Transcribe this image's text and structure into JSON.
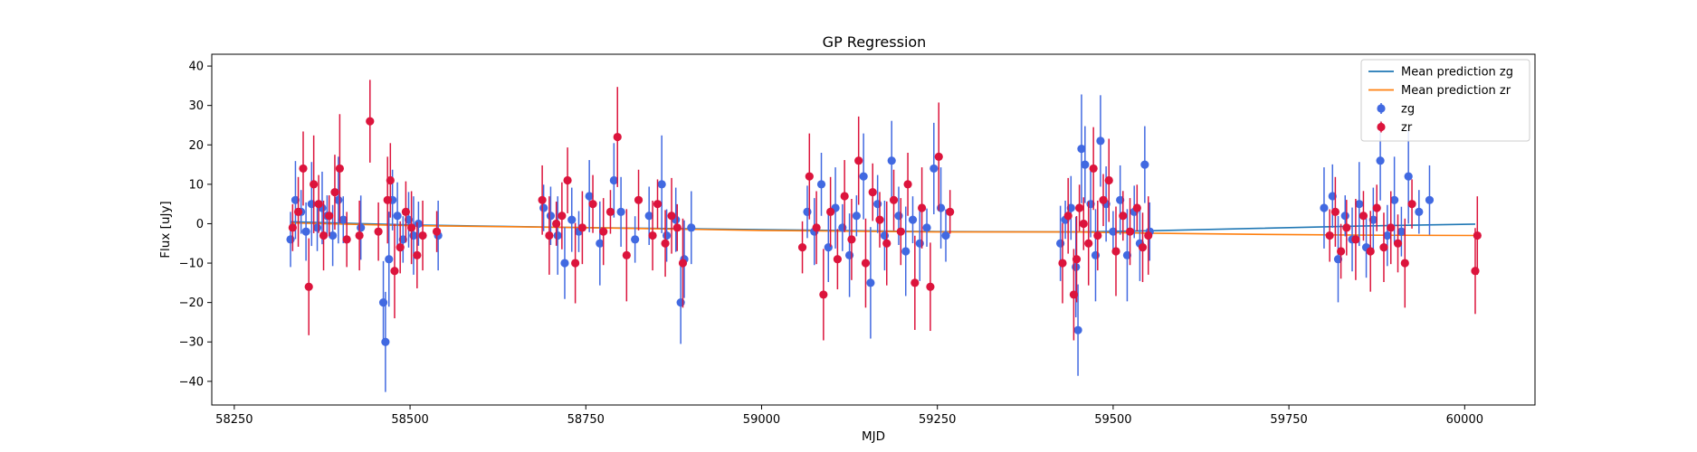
{
  "chart_data": {
    "type": "scatter",
    "title": "GP Regression",
    "xlabel": "MJD",
    "ylabel": "Flux [uJy]",
    "xlim": [
      58218,
      60100
    ],
    "ylim": [
      -46,
      43
    ],
    "xticks": [
      58250,
      58500,
      58750,
      59000,
      59250,
      59500,
      59750,
      60000
    ],
    "yticks": [
      -40,
      -30,
      -20,
      -10,
      0,
      10,
      20,
      30,
      40
    ],
    "legend_position": "top-right",
    "lines": [
      {
        "name": "Mean prediction zg",
        "color": "#1f77b4",
        "x": [
          58330,
          58500,
          58750,
          59000,
          59250,
          59450,
          59550,
          59700,
          59850,
          60015
        ],
        "y": [
          0.5,
          -0.3,
          -1.0,
          -1.5,
          -2.0,
          -2.1,
          -1.8,
          -1.2,
          -0.6,
          -0.1
        ]
      },
      {
        "name": "Mean prediction zr",
        "color": "#ff7f0e",
        "x": [
          58330,
          58500,
          58750,
          59000,
          59250,
          59450,
          59550,
          59700,
          59850,
          60015
        ],
        "y": [
          0.2,
          -0.5,
          -1.0,
          -1.7,
          -2.1,
          -2.1,
          -2.4,
          -2.7,
          -2.9,
          -3.0
        ]
      }
    ],
    "series": [
      {
        "name": "zg",
        "color": "#4169e1",
        "x": [
          58330,
          58337,
          58345,
          58352,
          58360,
          58368,
          58375,
          58382,
          58390,
          58398,
          58405,
          58430,
          58462,
          58465,
          58470,
          58475,
          58482,
          58490,
          58498,
          58505,
          58512,
          58540,
          58690,
          58700,
          58710,
          58720,
          58730,
          58740,
          58755,
          58770,
          58790,
          58800,
          58820,
          58840,
          58858,
          58865,
          58878,
          58885,
          58890,
          58900,
          59065,
          59075,
          59085,
          59095,
          59105,
          59115,
          59125,
          59135,
          59145,
          59155,
          59165,
          59175,
          59185,
          59195,
          59205,
          59215,
          59225,
          59235,
          59245,
          59255,
          59262,
          59425,
          59432,
          59440,
          59447,
          59450,
          59455,
          59460,
          59468,
          59475,
          59482,
          59490,
          59500,
          59510,
          59520,
          59530,
          59538,
          59545,
          59552,
          59800,
          59812,
          59820,
          59830,
          59840,
          59850,
          59860,
          59870,
          59880,
          59890,
          59900,
          59910,
          59920,
          59935,
          59950
        ],
        "y": [
          -4,
          6,
          3,
          -2,
          5,
          -1,
          4,
          2,
          -3,
          6,
          1,
          -1,
          -20,
          -30,
          -9,
          6,
          2,
          -4,
          1,
          -3,
          0,
          -3,
          4,
          2,
          -3,
          -10,
          1,
          -2,
          7,
          -5,
          11,
          3,
          -4,
          2,
          10,
          -3,
          1,
          -20,
          -9,
          -1,
          3,
          -2,
          10,
          -6,
          4,
          -1,
          -8,
          2,
          12,
          -15,
          5,
          -3,
          16,
          2,
          -7,
          1,
          -5,
          -1,
          14,
          4,
          -3,
          -5,
          1,
          4,
          -11,
          -27,
          19,
          15,
          5,
          -8,
          21,
          5,
          -2,
          6,
          -8,
          3,
          -5,
          15,
          -2,
          4,
          7,
          -9,
          2,
          -4,
          5,
          -6,
          1,
          16,
          -3,
          6,
          -2,
          12,
          3,
          6
        ]
      },
      {
        "name": "zr",
        "color": "#dc143c",
        "x": [
          58333,
          58341,
          58348,
          58356,
          58363,
          58370,
          58377,
          58385,
          58393,
          58400,
          58410,
          58428,
          58443,
          58455,
          58468,
          58472,
          58478,
          58486,
          58494,
          58502,
          58510,
          58518,
          58538,
          58688,
          58698,
          58708,
          58716,
          58724,
          58735,
          58745,
          58760,
          58775,
          58785,
          58795,
          58808,
          58825,
          58845,
          58852,
          58863,
          58872,
          58880,
          58888,
          59058,
          59068,
          59078,
          59088,
          59098,
          59108,
          59118,
          59128,
          59138,
          59148,
          59158,
          59168,
          59178,
          59188,
          59198,
          59208,
          59218,
          59228,
          59240,
          59252,
          59268,
          59428,
          59436,
          59444,
          59448,
          59452,
          59458,
          59465,
          59472,
          59478,
          59486,
          59494,
          59504,
          59514,
          59524,
          59534,
          59542,
          59550,
          59808,
          59816,
          59824,
          59832,
          59845,
          59856,
          59866,
          59875,
          59885,
          59895,
          59905,
          59915,
          59925,
          60015,
          60018
        ],
        "y": [
          -1,
          3,
          14,
          -16,
          10,
          5,
          -3,
          2,
          8,
          14,
          -4,
          -3,
          26,
          -2,
          6,
          11,
          -12,
          -6,
          3,
          -1,
          -8,
          -3,
          -2,
          6,
          -3,
          0,
          2,
          11,
          -10,
          -1,
          5,
          -2,
          3,
          22,
          -8,
          6,
          -3,
          5,
          -5,
          2,
          -1,
          -10,
          -6,
          12,
          -1,
          -18,
          3,
          -9,
          7,
          -4,
          16,
          -10,
          8,
          1,
          -5,
          6,
          -2,
          10,
          -15,
          4,
          -16,
          17,
          3,
          -10,
          2,
          -18,
          -9,
          4,
          0,
          -5,
          14,
          -3,
          6,
          11,
          -7,
          2,
          -2,
          4,
          -6,
          -3,
          -3,
          3,
          -7,
          -1,
          -4,
          2,
          -7,
          4,
          -6,
          -1,
          -5,
          -10,
          5,
          -12,
          -3
        ]
      }
    ]
  }
}
